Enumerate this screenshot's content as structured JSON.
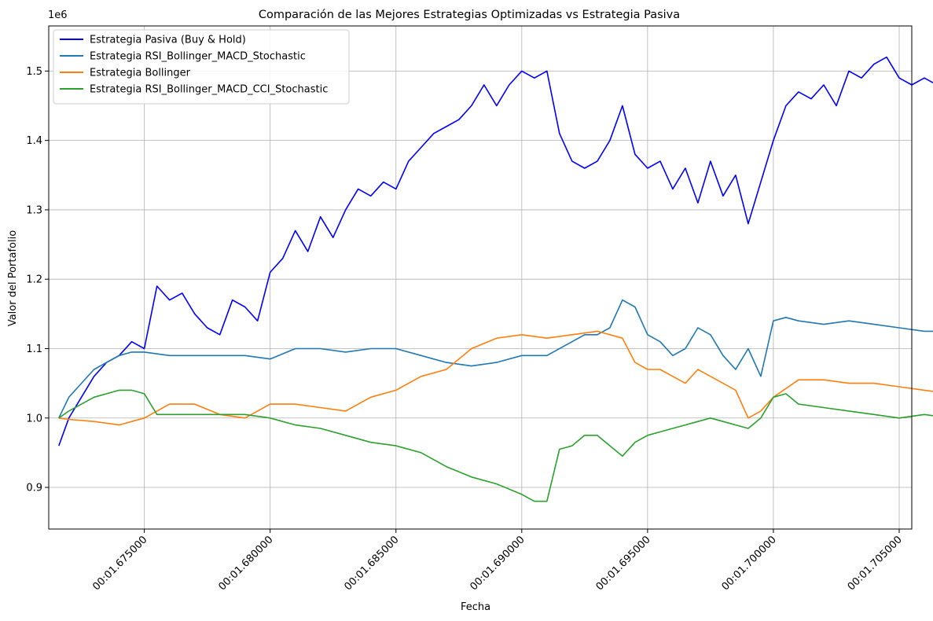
{
  "chart_data": {
    "type": "line",
    "title": "Comparación de las Mejores Estrategias Optimizadas vs Estrategia Pasiva",
    "xlabel": "Fecha",
    "ylabel": "Valor del Portafolio",
    "y_offset_label": "1e6",
    "xlim": [
      1.6712,
      1.7055
    ],
    "ylim": [
      0.84,
      1.565
    ],
    "x_ticks": [
      1.675,
      1.68,
      1.685,
      1.69,
      1.695,
      1.7,
      1.705
    ],
    "x_tick_labels": [
      "00:01.675000",
      "00:01.680000",
      "00:01.685000",
      "00:01.690000",
      "00:01.695000",
      "00:01.700000",
      "00:01.705000"
    ],
    "y_ticks": [
      0.9,
      1.0,
      1.1,
      1.2,
      1.3,
      1.4,
      1.5
    ],
    "y_tick_labels": [
      "0.9",
      "1.0",
      "1.1",
      "1.2",
      "1.3",
      "1.4",
      "1.5"
    ],
    "grid": true,
    "legend_position": "top-left",
    "series": [
      {
        "name": "Estrategia Pasiva (Buy & Hold)",
        "color": "#0000ff",
        "x": [
          1.6716,
          1.672,
          1.6725,
          1.673,
          1.6735,
          1.674,
          1.6745,
          1.675,
          1.6755,
          1.676,
          1.6765,
          1.677,
          1.6775,
          1.678,
          1.6785,
          1.679,
          1.6795,
          1.68,
          1.6805,
          1.681,
          1.6815,
          1.682,
          1.6825,
          1.683,
          1.6835,
          1.684,
          1.6845,
          1.685,
          1.6855,
          1.686,
          1.6865,
          1.687,
          1.6875,
          1.688,
          1.6885,
          1.689,
          1.6895,
          1.69,
          1.6905,
          1.691,
          1.6915,
          1.692,
          1.6925,
          1.693,
          1.6935,
          1.694,
          1.6945,
          1.695,
          1.6955,
          1.696,
          1.6965,
          1.697,
          1.6975,
          1.698,
          1.6985,
          1.699,
          1.6995,
          1.7,
          1.7005,
          1.701,
          1.7015,
          1.702,
          1.7025,
          1.703,
          1.7035,
          1.704,
          1.7045,
          1.705,
          1.7055,
          1.706,
          1.7065,
          1.707,
          1.7075,
          1.708
        ],
        "y": [
          0.96,
          1.0,
          1.03,
          1.06,
          1.08,
          1.09,
          1.11,
          1.1,
          1.19,
          1.17,
          1.18,
          1.15,
          1.13,
          1.12,
          1.17,
          1.16,
          1.14,
          1.21,
          1.23,
          1.27,
          1.24,
          1.29,
          1.26,
          1.3,
          1.33,
          1.32,
          1.34,
          1.33,
          1.37,
          1.39,
          1.41,
          1.42,
          1.43,
          1.45,
          1.48,
          1.45,
          1.48,
          1.5,
          1.49,
          1.5,
          1.41,
          1.37,
          1.36,
          1.37,
          1.4,
          1.45,
          1.38,
          1.36,
          1.37,
          1.33,
          1.36,
          1.31,
          1.37,
          1.32,
          1.35,
          1.28,
          1.34,
          1.4,
          1.45,
          1.47,
          1.46,
          1.48,
          1.45,
          1.5,
          1.49,
          1.51,
          1.52,
          1.49,
          1.48,
          1.49,
          1.48,
          1.49,
          1.485,
          1.48
        ]
      },
      {
        "name": "Estrategia RSI_Bollinger_MACD_Stochastic",
        "color": "#1f77b4",
        "x": [
          1.6716,
          1.672,
          1.6725,
          1.673,
          1.6735,
          1.674,
          1.6745,
          1.675,
          1.676,
          1.677,
          1.678,
          1.679,
          1.68,
          1.681,
          1.682,
          1.683,
          1.684,
          1.685,
          1.686,
          1.687,
          1.688,
          1.689,
          1.69,
          1.691,
          1.692,
          1.6925,
          1.693,
          1.6935,
          1.694,
          1.6945,
          1.695,
          1.6955,
          1.696,
          1.6965,
          1.697,
          1.6975,
          1.698,
          1.6985,
          1.699,
          1.6995,
          1.7,
          1.7005,
          1.701,
          1.702,
          1.703,
          1.704,
          1.705,
          1.706,
          1.707,
          1.708
        ],
        "y": [
          1.0,
          1.03,
          1.05,
          1.07,
          1.08,
          1.09,
          1.095,
          1.095,
          1.09,
          1.09,
          1.09,
          1.09,
          1.085,
          1.1,
          1.1,
          1.095,
          1.1,
          1.1,
          1.09,
          1.08,
          1.075,
          1.08,
          1.09,
          1.09,
          1.11,
          1.12,
          1.12,
          1.13,
          1.17,
          1.16,
          1.12,
          1.11,
          1.09,
          1.1,
          1.13,
          1.12,
          1.09,
          1.07,
          1.1,
          1.06,
          1.14,
          1.145,
          1.14,
          1.135,
          1.14,
          1.135,
          1.13,
          1.125,
          1.125,
          1.12
        ]
      },
      {
        "name": "Estrategia Bollinger",
        "color": "#ff7f0e",
        "x": [
          1.6716,
          1.672,
          1.673,
          1.674,
          1.675,
          1.676,
          1.677,
          1.678,
          1.679,
          1.68,
          1.681,
          1.682,
          1.683,
          1.684,
          1.685,
          1.686,
          1.687,
          1.688,
          1.689,
          1.69,
          1.691,
          1.692,
          1.693,
          1.694,
          1.6945,
          1.695,
          1.6955,
          1.696,
          1.6965,
          1.697,
          1.6975,
          1.698,
          1.6985,
          1.699,
          1.6995,
          1.7,
          1.701,
          1.702,
          1.703,
          1.704,
          1.705,
          1.706,
          1.707,
          1.708
        ],
        "y": [
          1.0,
          0.998,
          0.995,
          0.99,
          1.0,
          1.02,
          1.02,
          1.005,
          1.0,
          1.02,
          1.02,
          1.015,
          1.01,
          1.03,
          1.04,
          1.06,
          1.07,
          1.1,
          1.115,
          1.12,
          1.115,
          1.12,
          1.125,
          1.115,
          1.08,
          1.07,
          1.07,
          1.06,
          1.05,
          1.07,
          1.06,
          1.05,
          1.04,
          1.0,
          1.01,
          1.03,
          1.055,
          1.055,
          1.05,
          1.05,
          1.045,
          1.04,
          1.035,
          1.03
        ]
      },
      {
        "name": "Estrategia RSI_Bollinger_MACD_CCI_Stochastic",
        "color": "#2ca02c",
        "x": [
          1.6716,
          1.672,
          1.6725,
          1.673,
          1.6735,
          1.674,
          1.6745,
          1.675,
          1.6755,
          1.676,
          1.677,
          1.678,
          1.679,
          1.68,
          1.681,
          1.682,
          1.683,
          1.684,
          1.685,
          1.686,
          1.687,
          1.688,
          1.689,
          1.69,
          1.6905,
          1.691,
          1.6915,
          1.692,
          1.6925,
          1.693,
          1.6935,
          1.694,
          1.6945,
          1.695,
          1.6955,
          1.696,
          1.6965,
          1.697,
          1.6975,
          1.698,
          1.6985,
          1.699,
          1.6995,
          1.7,
          1.7005,
          1.701,
          1.702,
          1.703,
          1.704,
          1.705,
          1.706,
          1.707,
          1.708
        ],
        "y": [
          1.0,
          1.01,
          1.02,
          1.03,
          1.035,
          1.04,
          1.04,
          1.035,
          1.005,
          1.005,
          1.005,
          1.005,
          1.005,
          1.0,
          0.99,
          0.985,
          0.975,
          0.965,
          0.96,
          0.95,
          0.93,
          0.915,
          0.905,
          0.89,
          0.88,
          0.88,
          0.955,
          0.96,
          0.975,
          0.975,
          0.96,
          0.945,
          0.965,
          0.975,
          0.98,
          0.985,
          0.99,
          0.995,
          1.0,
          0.995,
          0.99,
          0.985,
          1.0,
          1.03,
          1.035,
          1.02,
          1.015,
          1.01,
          1.005,
          1.0,
          1.005,
          1.0,
          1.005
        ]
      }
    ]
  }
}
